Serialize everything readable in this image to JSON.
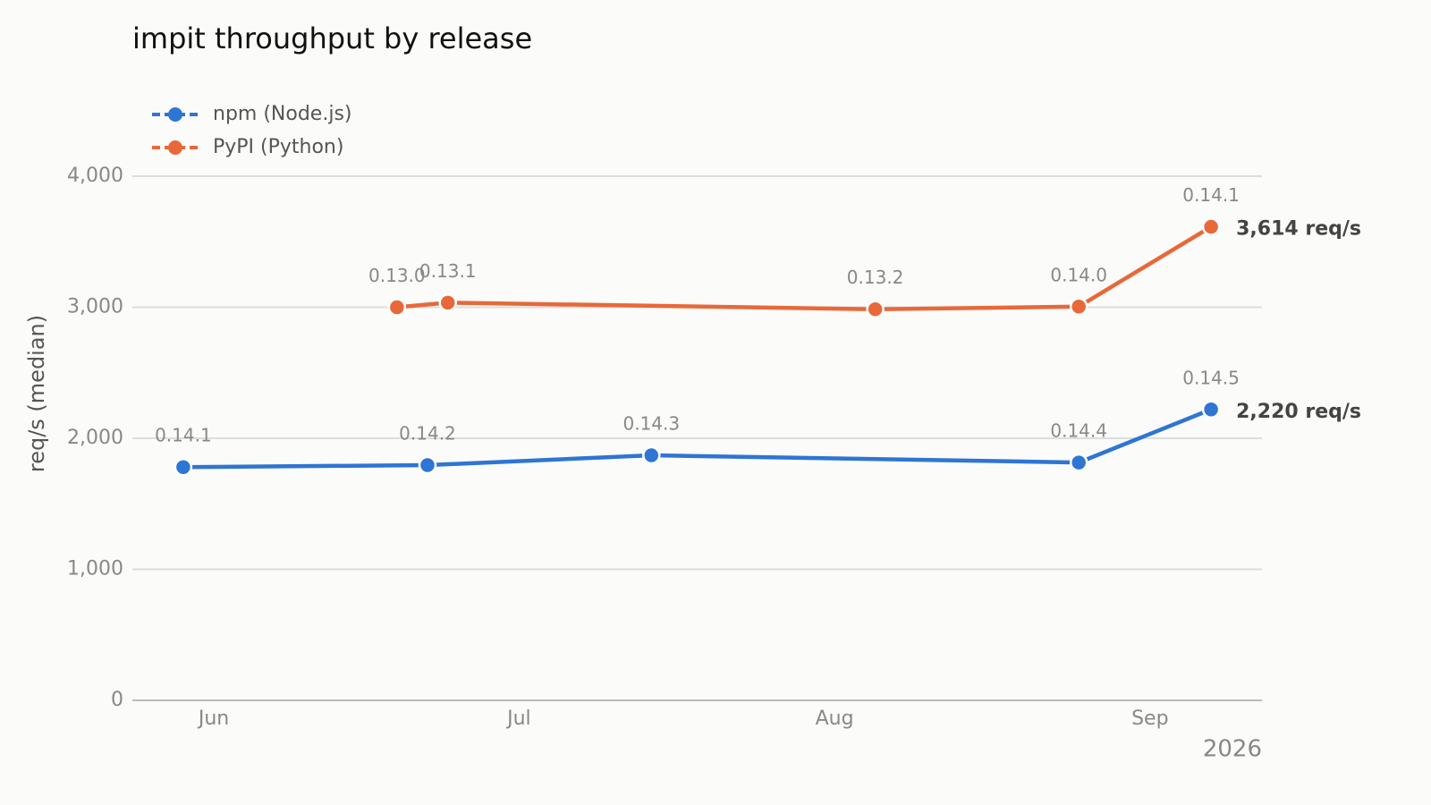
{
  "chart_data": {
    "type": "line",
    "title": "impit throughput by release",
    "y_label": "req/s (median)",
    "x_label": "2026",
    "xlim": [
      "2026-05-24",
      "2026-09-12"
    ],
    "xticks": [
      {
        "value": "2026-06-01",
        "label": "Jun"
      },
      {
        "value": "2026-07-01",
        "label": "Jul"
      },
      {
        "value": "2026-08-01",
        "label": "Aug"
      },
      {
        "value": "2026-09-01",
        "label": "Sep"
      }
    ],
    "ylim": [
      0,
      4000
    ],
    "yticks": [
      0,
      {
        "value": 1000,
        "label": "1,000"
      },
      {
        "value": 2000,
        "label": "2,000"
      },
      {
        "value": 3000,
        "label": "3,000"
      },
      {
        "value": 4000,
        "label": "4,000"
      }
    ],
    "grid": true,
    "legend": "top-left",
    "series": [
      {
        "name": "npm (Node.js)",
        "color": "#2e75d4",
        "x": [
          "2026-05-29",
          "2026-06-22",
          "2026-07-14",
          "2026-08-25",
          "2026-09-07"
        ],
        "values": [
          1780,
          1795,
          1870,
          1815,
          2220
        ],
        "labels": [
          "0.14.1",
          "0.14.2",
          "0.14.3",
          "0.14.4",
          "0.14.5"
        ],
        "value_labels": [
          null,
          null,
          null,
          null,
          "2,220 req/s"
        ]
      },
      {
        "name": "PyPI (Python)",
        "color": "#e8683a",
        "x": [
          "2026-06-19",
          "2026-06-24",
          "2026-08-05",
          "2026-08-25",
          "2026-09-07"
        ],
        "values": [
          3000,
          3035,
          2985,
          3005,
          3614
        ],
        "labels": [
          "0.13.0",
          "0.13.1",
          "0.13.2",
          "0.14.0",
          "0.14.1"
        ],
        "value_labels": [
          null,
          null,
          null,
          null,
          "3,614 req/s"
        ]
      }
    ]
  }
}
